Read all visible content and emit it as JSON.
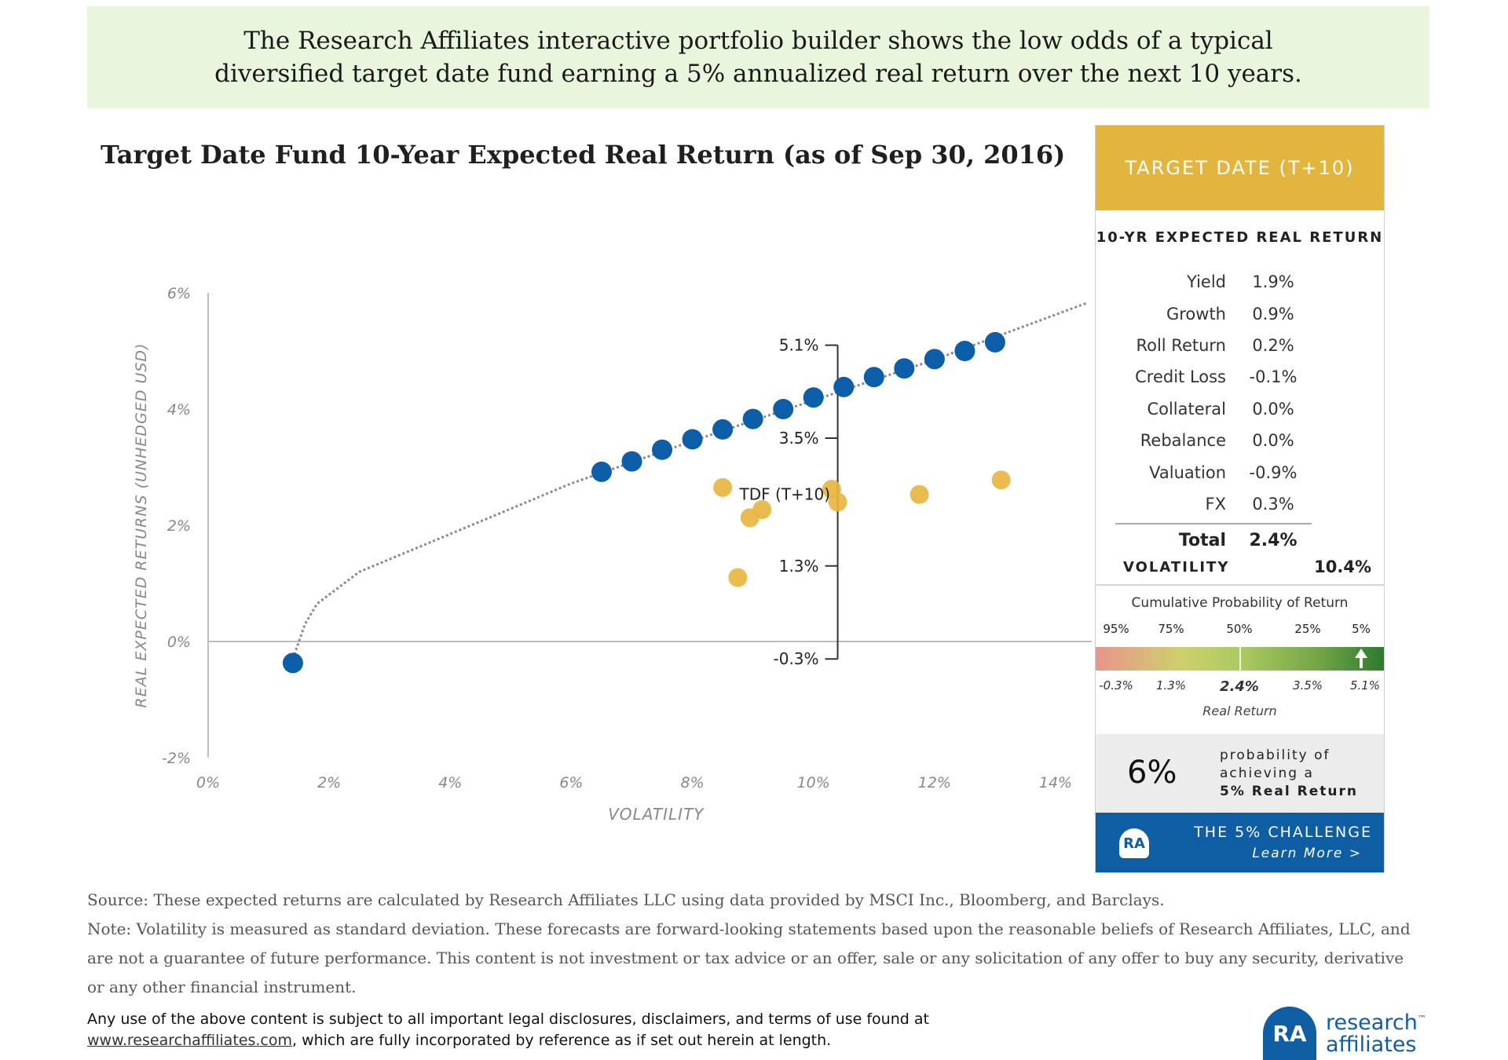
{
  "banner": {
    "text": "The Research Affiliates interactive portfolio builder shows the low odds of a typical diversified target date fund earning a 5% annualized real return over the next 10 years."
  },
  "chart_data": {
    "type": "scatter",
    "title": "Target Date Fund 10-Year Expected Real Return (as of Sep 30, 2016)",
    "xlabel": "VOLATILITY",
    "ylabel": "REAL EXPECTED RETURNS (UNHEDGED USD)",
    "xlim": [
      0,
      14
    ],
    "ylim": [
      -2,
      6
    ],
    "x_ticks": [
      "0%",
      "2%",
      "4%",
      "6%",
      "8%",
      "10%",
      "12%",
      "14%"
    ],
    "y_ticks": [
      "6%",
      "4%",
      "2%",
      "0%",
      "-2%"
    ],
    "y_tick_values": [
      6,
      4,
      2,
      0,
      -2
    ],
    "x_tick_values": [
      0,
      2,
      4,
      6,
      8,
      10,
      12,
      14
    ],
    "grid": false,
    "series": [
      {
        "color": "#0c5ea8",
        "points": [
          [
            1.4,
            -0.37
          ],
          [
            6.5,
            2.92
          ],
          [
            7.0,
            3.1
          ],
          [
            7.5,
            3.3
          ],
          [
            8.0,
            3.48
          ],
          [
            8.5,
            3.65
          ],
          [
            9.0,
            3.83
          ],
          [
            9.5,
            4.0
          ],
          [
            10.0,
            4.2
          ],
          [
            10.5,
            4.38
          ],
          [
            11.0,
            4.55
          ],
          [
            11.5,
            4.7
          ],
          [
            12.0,
            4.86
          ],
          [
            12.5,
            5.0
          ],
          [
            13.0,
            5.15
          ]
        ]
      },
      {
        "color": "#e8b53d",
        "points": [
          [
            8.5,
            2.65
          ],
          [
            8.75,
            1.1
          ],
          [
            8.95,
            2.13
          ],
          [
            9.15,
            2.27
          ],
          [
            10.3,
            2.62
          ],
          [
            10.4,
            2.4
          ],
          [
            11.75,
            2.53
          ],
          [
            13.1,
            2.78
          ]
        ]
      }
    ],
    "frontier_curve": [
      [
        1.4,
        -0.3
      ],
      [
        1.6,
        0.3
      ],
      [
        1.8,
        0.65
      ],
      [
        2.5,
        1.2
      ],
      [
        4.0,
        1.85
      ],
      [
        6.0,
        2.72
      ],
      [
        8.0,
        3.45
      ],
      [
        10.0,
        4.15
      ],
      [
        12.0,
        4.85
      ],
      [
        14.5,
        5.82
      ]
    ],
    "range_markers": [
      {
        "label": "5.1%",
        "value": 5.1
      },
      {
        "label": "3.5%",
        "value": 3.5
      },
      {
        "label": "1.3%",
        "value": 1.3
      },
      {
        "label": "-0.3%",
        "value": -0.3
      }
    ],
    "range_marker_x": 10.4,
    "annotations": [
      {
        "text": "TDF (T+10)",
        "x": 10.4,
        "y": 2.4
      }
    ]
  },
  "panel": {
    "header": "TARGET DATE (T+10)",
    "subheader": "10-YR EXPECTED REAL RETURN",
    "components": [
      {
        "label": "Yield",
        "value": "1.9%"
      },
      {
        "label": "Growth",
        "value": "0.9%"
      },
      {
        "label": "Roll Return",
        "value": "0.2%"
      },
      {
        "label": "Credit Loss",
        "value": "-0.1%"
      },
      {
        "label": "Collateral",
        "value": "0.0%"
      },
      {
        "label": "Rebalance",
        "value": "0.0%"
      },
      {
        "label": "Valuation",
        "value": "-0.9%"
      },
      {
        "label": "FX",
        "value": "0.3%"
      }
    ],
    "total_label": "Total",
    "total_value": "2.4%",
    "volatility_label": "VOLATILITY",
    "volatility_value": "10.4%",
    "cum_title": "Cumulative Probability of Return",
    "percentiles": [
      "95%",
      "75%",
      "50%",
      "25%",
      "5%"
    ],
    "returns": [
      "-0.3%",
      "1.3%",
      "2.4%",
      "3.5%",
      "5.1%"
    ],
    "return_caption": "Real Return",
    "probability": "6%",
    "probability_text_1": "probability of",
    "probability_text_2": "achieving a",
    "probability_text_3": "5% Real Return",
    "challenge_title": "THE 5% CHALLENGE",
    "challenge_link": "Learn More >",
    "challenge_logo": "RA",
    "colors": {
      "header": "#e2b53f",
      "challenge": "#0f5ea3"
    }
  },
  "notes": {
    "source": "Source: These expected returns are calculated by Research Affiliates LLC using data provided by MSCI Inc., Bloomberg, and Barclays.",
    "note": "Note: Volatility is measured as standard deviation. These forecasts are forward-looking statements based upon the reasonable beliefs of Research Affiliates, LLC, and are not a guarantee of future performance. This content is not investment or tax advice or an offer, sale or any solicitation of any offer to buy any security, derivative or any other financial instrument."
  },
  "legal": {
    "line1": "Any use of the above content is subject to all important legal disclosures, disclaimers, and terms of use found at",
    "url": "www.researchaffiliates.com",
    "line2_rest": ", which are fully incorporated by reference as if set out herein at length."
  },
  "logo": {
    "mark": "RA",
    "word1": "research",
    "word2": "affiliates",
    "tm": "™"
  }
}
